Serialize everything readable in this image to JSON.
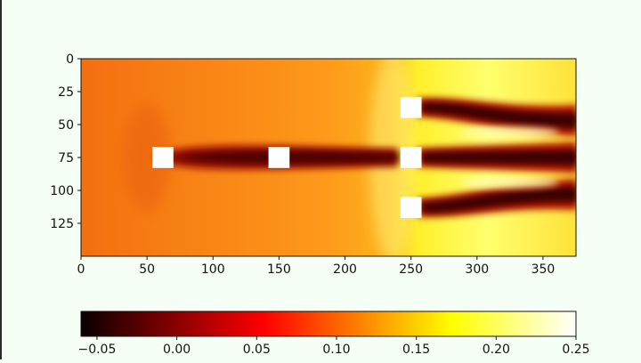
{
  "chart_data": [
    {
      "type": "heatmap",
      "title": "",
      "xlabel": "",
      "ylabel": "",
      "xlim": [
        0,
        375
      ],
      "ylim": [
        150,
        0
      ],
      "colormap": "hot",
      "value_range": [
        -0.06,
        0.25
      ],
      "x_ticks": [
        "0",
        "50",
        "100",
        "150",
        "200",
        "250",
        "300",
        "350"
      ],
      "y_ticks": [
        "0",
        "25",
        "50",
        "75",
        "100",
        "125"
      ],
      "obstacles": [
        {
          "x": 62,
          "y": 75,
          "size": 16
        },
        {
          "x": 150,
          "y": 75,
          "size": 16
        },
        {
          "x": 250,
          "y": 37,
          "size": 16
        },
        {
          "x": 250,
          "y": 75,
          "size": 16
        },
        {
          "x": 250,
          "y": 113,
          "size": 16
        }
      ],
      "field_description": "wake field: low values in wakes behind blocks, high values upstream of front column"
    },
    {
      "type": "colorbar",
      "range": [
        -0.06,
        0.25
      ],
      "ticks": [
        "−0.05",
        "0.00",
        "0.05",
        "0.10",
        "0.15",
        "0.20",
        "0.25"
      ]
    }
  ]
}
